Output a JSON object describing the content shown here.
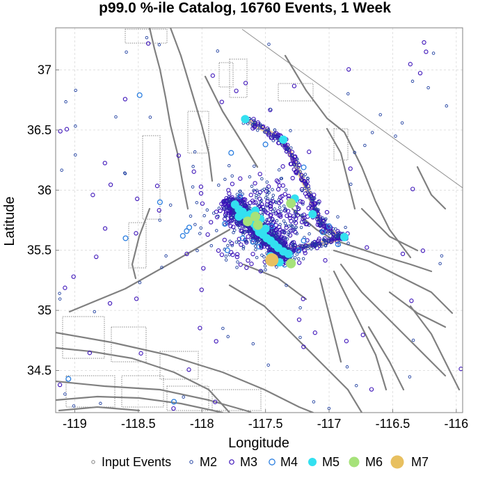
{
  "chart_data": {
    "type": "scatter",
    "title": "p99.0 %-ile Catalog, 16760 Events, 1 Week",
    "xlabel": "Longitude",
    "ylabel": "Latitude",
    "xlim": [
      -119.15,
      -115.95
    ],
    "ylim": [
      34.15,
      37.35
    ],
    "xticks": [
      -119,
      -118.5,
      -118,
      -117.5,
      -117,
      -116.5,
      -116
    ],
    "xtick_labels": [
      "-119",
      "-118.5",
      "-118",
      "-117.5",
      "-117",
      "-116.5",
      "-116"
    ],
    "yticks": [
      34.5,
      35,
      35.5,
      36,
      36.5,
      37
    ],
    "ytick_labels": [
      "34.5",
      "35",
      "35.5",
      "36",
      "36.5",
      "37"
    ],
    "grid": true,
    "legend_position": "bottom",
    "legend": [
      {
        "label": "Input Events",
        "key": "input"
      },
      {
        "label": "M2",
        "key": "m2"
      },
      {
        "label": "M3",
        "key": "m3"
      },
      {
        "label": "M4",
        "key": "m4"
      },
      {
        "label": "M5",
        "key": "m5"
      },
      {
        "label": "M6",
        "key": "m6"
      },
      {
        "label": "M7",
        "key": "m7"
      }
    ],
    "colors": {
      "input": "#7f7f7f",
      "m2": "#1f3fa0",
      "m3": "#3a10b8",
      "m4": "#2a7ee0",
      "m5": "#33e0f0",
      "m6": "#a6e27a",
      "m7": "#e8c060",
      "fault": "#808080",
      "rupture_outer": "#e8c9a0",
      "rupture_inner": "#8c8cc0"
    },
    "rupture_trace": [
      [
        -117.66,
        36.59
      ],
      [
        -117.52,
        36.51
      ],
      [
        -117.4,
        36.44
      ],
      [
        -117.32,
        36.34
      ],
      [
        -117.24,
        36.16
      ],
      [
        -117.16,
        35.98
      ],
      [
        -117.1,
        35.8
      ],
      [
        -117.04,
        35.7
      ],
      [
        -116.95,
        35.63
      ],
      [
        -116.88,
        35.61
      ],
      [
        -117.05,
        35.56
      ],
      [
        -117.25,
        35.52
      ],
      [
        -117.45,
        35.47
      ]
    ],
    "series": [
      {
        "name": "M7",
        "points": [
          [
            -117.45,
            35.42
          ]
        ]
      },
      {
        "name": "M6",
        "points": [
          [
            -117.3,
            35.89
          ],
          [
            -117.64,
            35.74
          ],
          [
            -117.58,
            35.78
          ],
          [
            -117.56,
            35.71
          ],
          [
            -117.3,
            35.39
          ]
        ]
      },
      {
        "name": "M5",
        "points": [
          [
            -117.74,
            35.88
          ],
          [
            -117.71,
            35.84
          ],
          [
            -117.68,
            35.82
          ],
          [
            -117.66,
            35.79
          ],
          [
            -117.62,
            35.8
          ],
          [
            -117.61,
            35.75
          ],
          [
            -117.59,
            35.72
          ],
          [
            -117.57,
            35.69
          ],
          [
            -117.55,
            35.65
          ],
          [
            -117.52,
            35.63
          ],
          [
            -117.49,
            35.6
          ],
          [
            -117.46,
            35.58
          ],
          [
            -117.43,
            35.55
          ],
          [
            -117.4,
            35.52
          ],
          [
            -117.36,
            35.49
          ],
          [
            -117.32,
            35.47
          ],
          [
            -117.46,
            35.45
          ],
          [
            -117.39,
            35.4
          ],
          [
            -117.58,
            35.83
          ],
          [
            -117.54,
            35.76
          ],
          [
            -117.5,
            35.68
          ],
          [
            -117.71,
            35.78
          ],
          [
            -117.36,
            36.42
          ],
          [
            -117.66,
            36.59
          ],
          [
            -117.13,
            35.8
          ],
          [
            -116.88,
            35.61
          ],
          [
            -117.27,
            35.93
          ]
        ]
      },
      {
        "name": "M4",
        "points": [
          [
            -118.49,
            36.79
          ],
          [
            -117.5,
            36.38
          ],
          [
            -117.77,
            36.31
          ],
          [
            -117.2,
            36.19
          ],
          [
            -117.82,
            35.72
          ],
          [
            -118.1,
            35.69
          ],
          [
            -118.12,
            35.66
          ],
          [
            -118.6,
            35.6
          ],
          [
            -117.8,
            35.5
          ],
          [
            -117.55,
            35.53
          ],
          [
            -117.3,
            35.46
          ],
          [
            -117.2,
            35.58
          ],
          [
            -117.05,
            35.65
          ],
          [
            -117.0,
            35.7
          ],
          [
            -118.15,
            35.62
          ],
          [
            -117.35,
            35.38
          ],
          [
            -116.93,
            35.55
          ],
          [
            -117.68,
            35.6
          ],
          [
            -117.6,
            35.57
          ],
          [
            -117.45,
            35.7
          ],
          [
            -118.22,
            34.24
          ],
          [
            -119.05,
            34.43
          ],
          [
            -117.24,
            35.5
          ],
          [
            -118.33,
            35.9
          ],
          [
            -117.7,
            35.95
          ]
        ]
      }
    ]
  }
}
